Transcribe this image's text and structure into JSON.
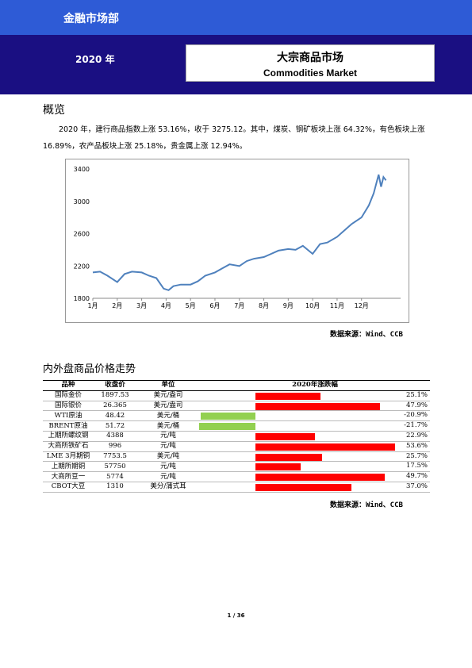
{
  "header": {
    "department": "金融市场部",
    "year": "2020 年",
    "title_cn": "大宗商品市场",
    "title_en": "Commodities Market"
  },
  "overview": {
    "heading": "概览",
    "paragraph": "2020 年，建行商品指数上涨 53.16%，收于 3275.12。其中，煤炭、钢矿板块上涨 64.32%，有色板块上涨 16.89%，农产品板块上涨 25.18%，贵金属上涨 12.94%。"
  },
  "chart_data": {
    "type": "line",
    "ylim": [
      1800,
      3400
    ],
    "yticks": [
      "1800",
      "2200",
      "2600",
      "3000",
      "3400"
    ],
    "xticks": [
      "1月",
      "2月",
      "3月",
      "4月",
      "5月",
      "6月",
      "7月",
      "8月",
      "9月",
      "10月",
      "11月",
      "12月"
    ],
    "x": [
      1.0,
      1.3,
      1.6,
      2.0,
      2.3,
      2.6,
      3.0,
      3.3,
      3.6,
      3.9,
      4.1,
      4.3,
      4.6,
      5.0,
      5.3,
      5.6,
      6.0,
      6.3,
      6.6,
      7.0,
      7.3,
      7.6,
      8.0,
      8.3,
      8.6,
      9.0,
      9.3,
      9.6,
      10.0,
      10.3,
      10.6,
      11.0,
      11.3,
      11.6,
      12.0,
      12.3,
      12.5,
      12.7,
      12.8,
      12.9,
      13.0
    ],
    "values": [
      2120,
      2130,
      2080,
      2000,
      2100,
      2130,
      2120,
      2080,
      2050,
      1920,
      1900,
      1950,
      1970,
      1970,
      2010,
      2080,
      2120,
      2170,
      2220,
      2200,
      2260,
      2290,
      2310,
      2350,
      2390,
      2410,
      2400,
      2450,
      2350,
      2470,
      2490,
      2560,
      2640,
      2720,
      2800,
      2950,
      3100,
      3330,
      3180,
      3300,
      3260
    ],
    "color": "#4f81bd"
  },
  "chart_source": "数据来源：Wind、CCB",
  "table_section": {
    "heading": "内外盘商品价格走势",
    "columns": [
      "品种",
      "收盘价",
      "单位",
      "2020年涨跌幅"
    ],
    "rows": [
      {
        "name": "国际金价",
        "close": "1897.53",
        "unit": "美元/盎司",
        "change": 25.1,
        "change_label": "25.1%"
      },
      {
        "name": "国际银价",
        "close": "26.365",
        "unit": "美元/盎司",
        "change": 47.9,
        "change_label": "47.9%"
      },
      {
        "name": "WTI原油",
        "close": "48.42",
        "unit": "美元/桶",
        "change": -20.9,
        "change_label": "-20.9%"
      },
      {
        "name": "BRENT原油",
        "close": "51.72",
        "unit": "美元/桶",
        "change": -21.7,
        "change_label": "-21.7%"
      },
      {
        "name": "上期所螺纹钢",
        "close": "4388",
        "unit": "元/吨",
        "change": 22.9,
        "change_label": "22.9%"
      },
      {
        "name": "大商所铁矿石",
        "close": "996",
        "unit": "元/吨",
        "change": 53.6,
        "change_label": "53.6%"
      },
      {
        "name": "LME 3月期铜",
        "close": "7753.5",
        "unit": "美元/吨",
        "change": 25.7,
        "change_label": "25.7%"
      },
      {
        "name": "上期所期铜",
        "close": "57750",
        "unit": "元/吨",
        "change": 17.5,
        "change_label": "17.5%"
      },
      {
        "name": "大商所豆一",
        "close": "5774",
        "unit": "元/吨",
        "change": 49.7,
        "change_label": "49.7%"
      },
      {
        "name": "CBOT大豆",
        "close": "1310",
        "unit": "美分/蒲式耳",
        "change": 37.0,
        "change_label": "37.0%"
      }
    ],
    "positive_color": "#ff0000",
    "negative_color": "#92d050",
    "source": "数据来源：Wind、CCB"
  },
  "footer": {
    "page": "1 / 36"
  }
}
